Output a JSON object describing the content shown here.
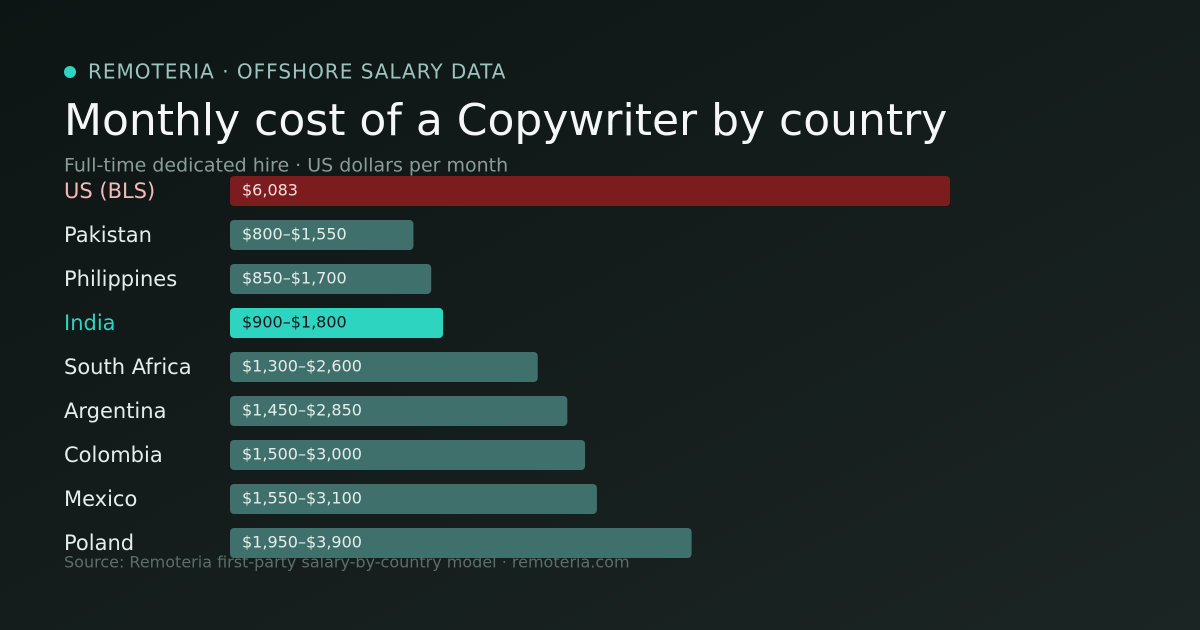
{
  "chart_data": {
    "type": "bar",
    "orientation": "horizontal",
    "kicker": "REMOTERIA · OFFSHORE SALARY DATA",
    "title": "Monthly cost of a Copywriter by country",
    "subtitle": "Full-time dedicated hire · US dollars per month",
    "source": "Source: Remoteria first-party salary-by-country model · remoteria.com",
    "categories": [
      "US (BLS)",
      "Pakistan",
      "Philippines",
      "India",
      "South Africa",
      "Argentina",
      "Colombia",
      "Mexico",
      "Poland"
    ],
    "values": [
      6083,
      1550,
      1700,
      1800,
      2600,
      2850,
      3000,
      3100,
      3900
    ],
    "value_labels": [
      "$6,083",
      "$800–$1,550",
      "$850–$1,700",
      "$900–$1,800",
      "$1,300–$2,600",
      "$1,450–$2,850",
      "$1,500–$3,000",
      "$1,550–$3,100",
      "$1,950–$3,900"
    ],
    "colors": [
      "#7d1c1e",
      "#3f706b",
      "#3f706b",
      "#2dd4bf",
      "#3f706b",
      "#3f706b",
      "#3f706b",
      "#3f706b",
      "#3f706b"
    ],
    "label_colors": [
      "#f6b8b8",
      "#e6ecea",
      "#e6ecea",
      "#2dd4bf",
      "#e6ecea",
      "#e6ecea",
      "#e6ecea",
      "#e6ecea",
      "#e6ecea"
    ],
    "value_label_colors": [
      "#f3dede",
      "#e6ecea",
      "#e6ecea",
      "#0f1a19",
      "#e6ecea",
      "#e6ecea",
      "#e6ecea",
      "#e6ecea",
      "#e6ecea"
    ]
  }
}
